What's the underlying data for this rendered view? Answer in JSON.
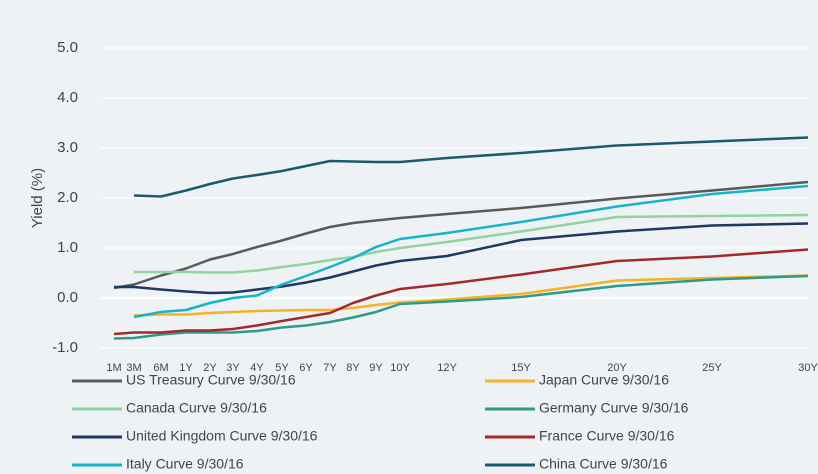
{
  "chart_data": {
    "type": "line",
    "y_label": "Yield (%)",
    "categories": [
      "1M",
      "3M",
      "6M",
      "1Y",
      "2Y",
      "3Y",
      "4Y",
      "5Y",
      "6Y",
      "7Y",
      "8Y",
      "9Y",
      "10Y",
      "12Y",
      "15Y",
      "20Y",
      "25Y",
      "30Y"
    ],
    "ylim": [
      -1,
      5
    ],
    "yticks": [
      {
        "value": -1,
        "label": "-1.0"
      },
      {
        "value": 0,
        "label": "0.0"
      },
      {
        "value": 1,
        "label": "1.0"
      },
      {
        "value": 2,
        "label": "2.0"
      },
      {
        "value": 3,
        "label": "3.0"
      },
      {
        "value": 4,
        "label": "4.0"
      },
      {
        "value": 5,
        "label": "5.0"
      }
    ],
    "grid": true,
    "series": [
      {
        "name": "US Treasury Curve 9/30/16",
        "color": "#5a5a5a",
        "values": [
          0.2,
          0.27,
          0.45,
          0.59,
          0.77,
          0.88,
          1.02,
          1.15,
          1.29,
          1.42,
          1.5,
          1.55,
          1.6,
          1.68,
          1.8,
          1.99,
          2.15,
          2.32
        ]
      },
      {
        "name": "Japan Curve 9/30/16",
        "color": "#f5b324",
        "values": [
          null,
          -0.35,
          -0.33,
          -0.33,
          -0.3,
          -0.28,
          -0.26,
          -0.25,
          -0.24,
          -0.24,
          -0.2,
          -0.14,
          -0.09,
          -0.03,
          0.08,
          0.35,
          0.4,
          0.45
        ]
      },
      {
        "name": "Canada Curve 9/30/16",
        "color": "#93d3a2",
        "values": [
          null,
          0.52,
          0.52,
          0.52,
          0.51,
          0.51,
          0.55,
          0.62,
          0.68,
          0.76,
          0.82,
          0.92,
          1.0,
          1.12,
          1.33,
          1.62,
          1.64,
          1.66
        ]
      },
      {
        "name": "Germany Curve 9/30/16",
        "color": "#2e9b8a",
        "values": [
          -0.81,
          -0.8,
          -0.73,
          -0.69,
          -0.69,
          -0.69,
          -0.66,
          -0.59,
          -0.55,
          -0.48,
          -0.39,
          -0.28,
          -0.12,
          -0.07,
          0.02,
          0.24,
          0.37,
          0.44
        ]
      },
      {
        "name": "United Kingdom Curve 9/30/16",
        "color": "#1f3864",
        "values": [
          0.22,
          0.22,
          0.17,
          0.13,
          0.1,
          0.11,
          0.17,
          0.23,
          0.31,
          0.41,
          0.53,
          0.65,
          0.74,
          0.84,
          1.16,
          1.33,
          1.45,
          1.49
        ]
      },
      {
        "name": "France Curve 9/30/16",
        "color": "#a32a2a",
        "values": [
          -0.72,
          -0.69,
          -0.69,
          -0.65,
          -0.65,
          -0.62,
          -0.55,
          -0.46,
          -0.38,
          -0.3,
          -0.1,
          0.05,
          0.18,
          0.28,
          0.47,
          0.74,
          0.83,
          0.97
        ]
      },
      {
        "name": "Italy Curve 9/30/16",
        "color": "#17b4c9",
        "values": [
          null,
          -0.38,
          -0.28,
          -0.24,
          -0.1,
          0.0,
          0.05,
          0.27,
          0.44,
          0.62,
          0.8,
          1.02,
          1.18,
          1.3,
          1.52,
          1.83,
          2.08,
          2.24
        ]
      },
      {
        "name": "China Curve 9/30/16",
        "color": "#1b5b6e",
        "values": [
          null,
          2.05,
          2.03,
          2.15,
          2.28,
          2.39,
          2.46,
          2.54,
          2.64,
          2.74,
          2.73,
          2.72,
          2.72,
          2.8,
          2.9,
          3.05,
          3.13,
          3.21
        ]
      }
    ]
  }
}
